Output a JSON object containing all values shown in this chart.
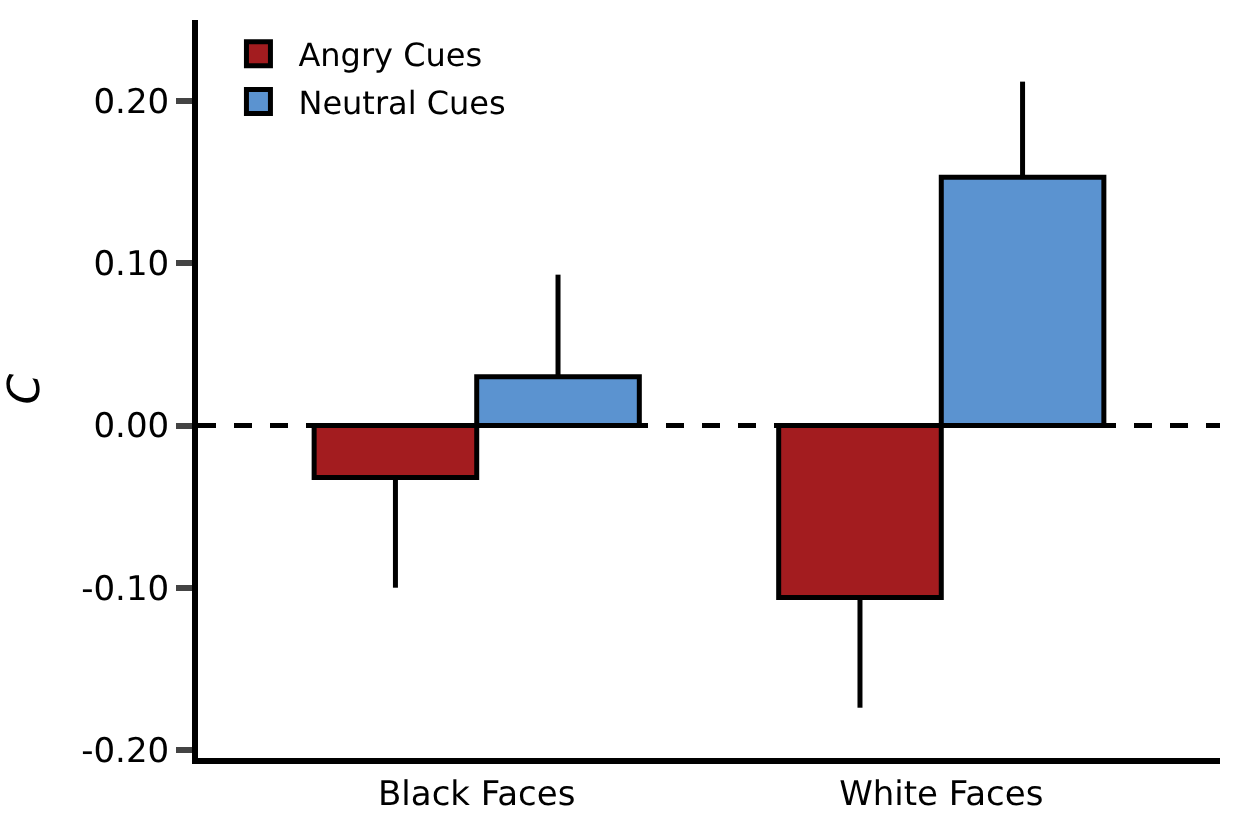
{
  "chart_data": {
    "type": "bar",
    "ylabel": "C",
    "categories": [
      "Black Faces",
      "White Faces"
    ],
    "series": [
      {
        "name": "Angry Cues",
        "color": "#a31c1f",
        "values": [
          -0.032,
          -0.106
        ],
        "errors": [
          [
            -0.1,
            -0.032
          ],
          [
            -0.174,
            -0.106
          ]
        ]
      },
      {
        "name": "Neutral Cues",
        "color": "#5b93d0",
        "values": [
          0.03,
          0.153
        ],
        "errors": [
          [
            0.03,
            0.093
          ],
          [
            0.153,
            0.212
          ]
        ]
      }
    ],
    "ylim": [
      -0.205,
      0.25
    ],
    "yticks": [
      {
        "value": -0.2,
        "label": "-0.20"
      },
      {
        "value": -0.1,
        "label": "-0.10"
      },
      {
        "value": 0,
        "label": "0.00"
      },
      {
        "value": 0.1,
        "label": "0.10"
      },
      {
        "value": 0.2,
        "label": "0.20"
      }
    ],
    "ref_lines": [
      {
        "axis": "y",
        "value": 0,
        "color": "#000000",
        "line_style": "dashed"
      }
    ],
    "legend": "top left"
  }
}
